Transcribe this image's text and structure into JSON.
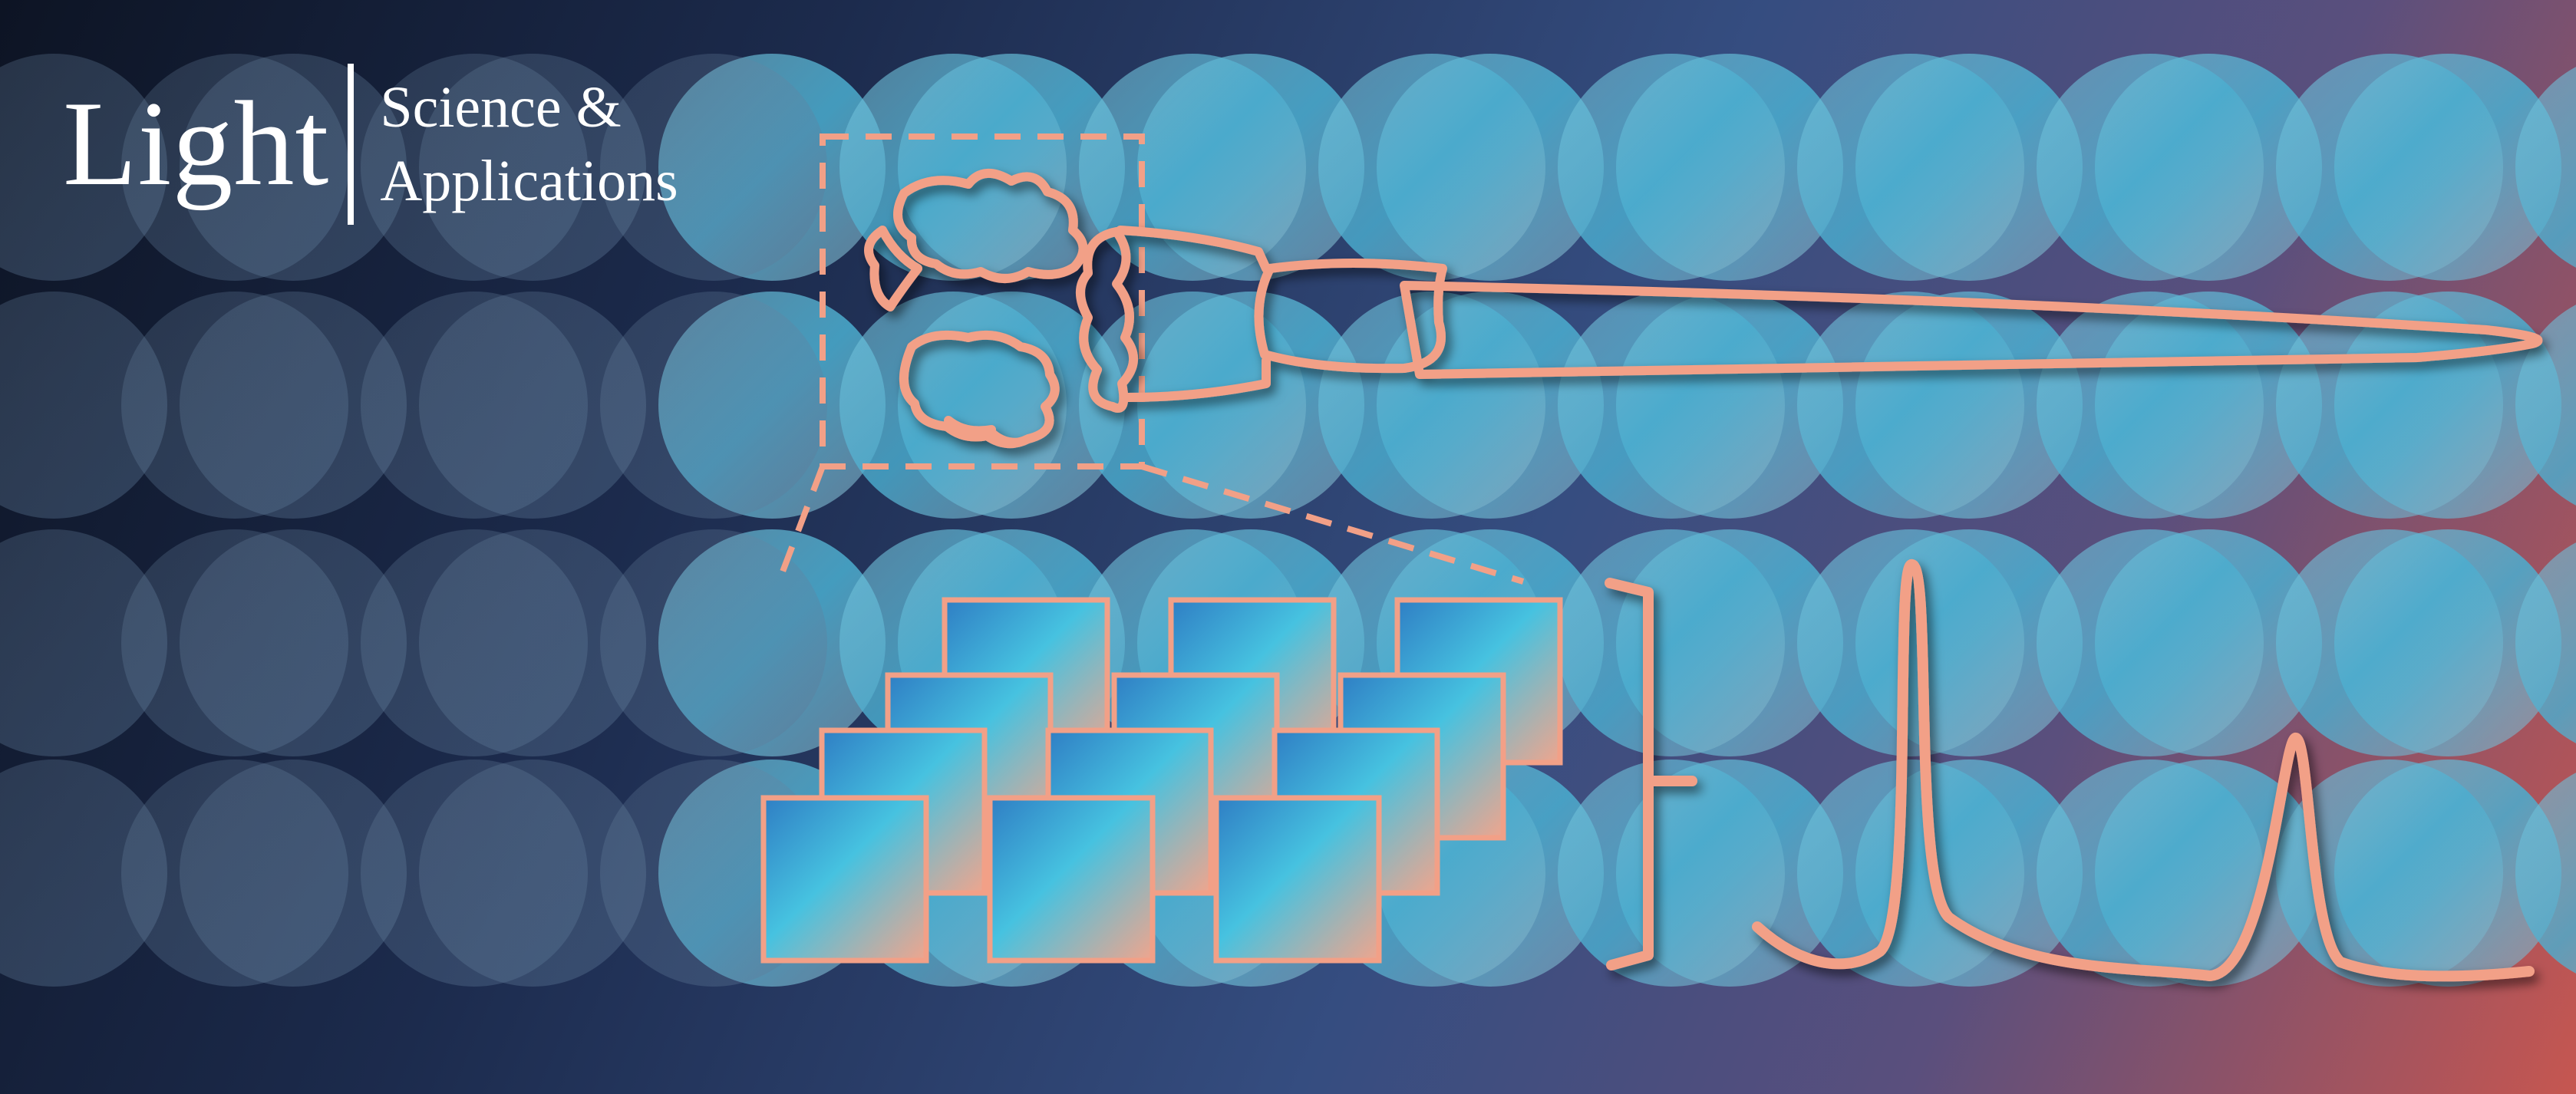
{
  "journal": {
    "name": "Light",
    "subtitle_line1": "Science &",
    "subtitle_line2": "Applications"
  },
  "colors": {
    "background_dark": "#0d1424",
    "background_mid": "#334b7c",
    "background_warm": "#c45750",
    "circle_fill": "#5fb8d8",
    "tile_cyan": "#3ec0de",
    "outline_salmon": "#f2a087"
  },
  "icons": [
    "bar-specimen-outline",
    "microlens-array-tiles",
    "spectrum-peaks"
  ]
}
